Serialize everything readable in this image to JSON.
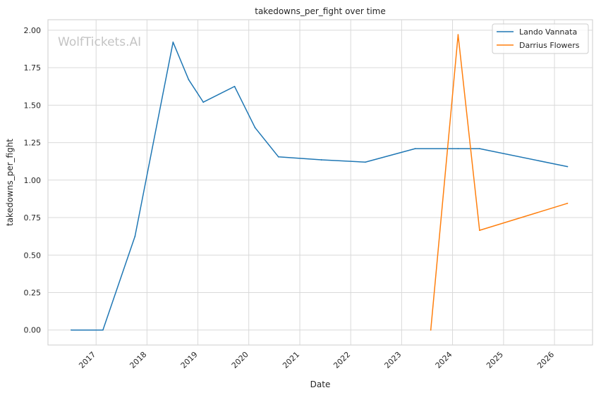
{
  "chart_data": {
    "type": "line",
    "title": "takedowns_per_fight over time",
    "xlabel": "Date",
    "ylabel": "takedowns_per_fight",
    "watermark": "WolfTickets.AI",
    "x_range": [
      "2016-01-22",
      "2026-10-01"
    ],
    "ylim": [
      -0.1,
      2.07
    ],
    "x_ticks": [
      "2017-01-01",
      "2018-01-01",
      "2019-01-01",
      "2020-01-01",
      "2021-01-01",
      "2022-01-01",
      "2023-01-01",
      "2024-01-01",
      "2025-01-01",
      "2026-01-01"
    ],
    "x_tick_labels": [
      "2017",
      "2018",
      "2019",
      "2020",
      "2021",
      "2022",
      "2023",
      "2024",
      "2025",
      "2026"
    ],
    "y_ticks": [
      0.0,
      0.25,
      0.5,
      0.75,
      1.0,
      1.25,
      1.5,
      1.75,
      2.0
    ],
    "y_tick_labels": [
      "0.00",
      "0.25",
      "0.50",
      "0.75",
      "1.00",
      "1.25",
      "1.50",
      "1.75",
      "2.00"
    ],
    "grid": true,
    "legend_position": "top-right",
    "series": [
      {
        "name": "Lando Vannata",
        "color": "#1f77b4",
        "points": [
          [
            "2016-07-07",
            0.0
          ],
          [
            "2017-02-19",
            0.0
          ],
          [
            "2017-10-07",
            0.625
          ],
          [
            "2018-07-07",
            1.92
          ],
          [
            "2018-10-27",
            1.67
          ],
          [
            "2019-02-09",
            1.52
          ],
          [
            "2019-09-21",
            1.625
          ],
          [
            "2020-02-15",
            1.35
          ],
          [
            "2020-08-01",
            1.155
          ],
          [
            "2021-06-05",
            1.135
          ],
          [
            "2022-04-16",
            1.12
          ],
          [
            "2023-04-08",
            1.21
          ],
          [
            "2024-02-10",
            1.21
          ],
          [
            "2024-07-13",
            1.21
          ],
          [
            "2026-04-04",
            1.09
          ]
        ]
      },
      {
        "name": "Darrius Flowers",
        "color": "#ff7f0e",
        "points": [
          [
            "2023-07-29",
            0.0
          ],
          [
            "2024-02-10",
            1.97
          ],
          [
            "2024-07-13",
            0.665
          ],
          [
            "2026-04-04",
            0.845
          ]
        ]
      }
    ]
  }
}
